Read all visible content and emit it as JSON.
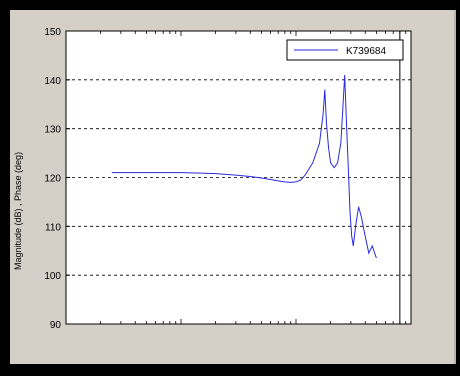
{
  "chart_data": {
    "type": "line",
    "title": "",
    "xlabel": "",
    "ylabel": "Magnitude (dB) , Phase (deg)",
    "xscale": "log",
    "ylim": [
      90,
      150
    ],
    "yticks": [
      90,
      100,
      110,
      120,
      130,
      140,
      150
    ],
    "grid": "dashed horizontal",
    "legend": "top-right",
    "colors": {
      "series": "#2a2ae0",
      "vline": "#000000",
      "background": "#ffffff",
      "frame": "#d4d0c8"
    },
    "vline_x": 8,
    "series": [
      {
        "name": "K739684",
        "x": [
          0.025,
          0.04,
          0.07,
          0.1,
          0.15,
          0.2,
          0.3,
          0.4,
          0.5,
          0.6,
          0.7,
          0.8,
          0.9,
          1.0,
          1.1,
          1.2,
          1.4,
          1.6,
          1.72,
          1.78,
          1.84,
          1.92,
          2.0,
          2.15,
          2.3,
          2.45,
          2.55,
          2.65,
          2.75,
          2.85,
          2.95,
          3.05,
          3.15,
          3.3,
          3.5,
          3.7,
          4.0,
          4.3,
          4.6,
          5.0
        ],
        "y": [
          121,
          121,
          121,
          121,
          120.9,
          120.8,
          120.5,
          120.2,
          119.9,
          119.6,
          119.3,
          119.1,
          119.0,
          119.1,
          119.5,
          120.5,
          123,
          127,
          133,
          138,
          131,
          126,
          123,
          122,
          123,
          127,
          134,
          141,
          131,
          122,
          113,
          108,
          106,
          110,
          114,
          112,
          108,
          104.5,
          106,
          103.5
        ]
      }
    ]
  }
}
